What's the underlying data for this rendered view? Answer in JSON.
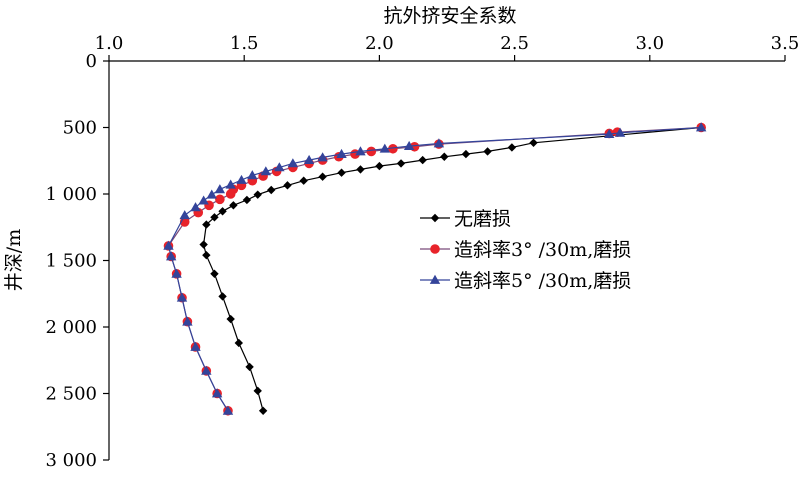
{
  "chart_data": {
    "type": "line",
    "xlabel": "抗外挤安全系数",
    "ylabel": "井深/m",
    "xlim": [
      1.0,
      3.5
    ],
    "ylim": [
      0,
      3000
    ],
    "x_axis_position": "top",
    "y_axis_inverted": true,
    "x_ticks": [
      1.0,
      1.5,
      2.0,
      2.5,
      3.0,
      3.5
    ],
    "x_tick_labels": [
      "1.0",
      "1.5",
      "2.0",
      "2.5",
      "3.0",
      "3.5"
    ],
    "y_ticks": [
      0,
      500,
      1000,
      1500,
      2000,
      2500,
      3000
    ],
    "y_tick_labels": [
      "0",
      "500",
      "1 000",
      "1 500",
      "2 000",
      "2 500",
      "3 000"
    ],
    "grid": false,
    "legend_position": "right",
    "series": [
      {
        "name": "无磨损",
        "color": "#000000",
        "marker": "diamond",
        "points": [
          [
            3.19,
            500
          ],
          [
            2.57,
            615
          ],
          [
            2.49,
            650
          ],
          [
            2.4,
            680
          ],
          [
            2.32,
            700
          ],
          [
            2.24,
            720
          ],
          [
            2.16,
            745
          ],
          [
            2.08,
            770
          ],
          [
            2.0,
            790
          ],
          [
            1.93,
            815
          ],
          [
            1.86,
            840
          ],
          [
            1.79,
            870
          ],
          [
            1.72,
            900
          ],
          [
            1.66,
            935
          ],
          [
            1.6,
            970
          ],
          [
            1.55,
            1005
          ],
          [
            1.51,
            1045
          ],
          [
            1.46,
            1085
          ],
          [
            1.42,
            1130
          ],
          [
            1.39,
            1175
          ],
          [
            1.36,
            1230
          ],
          [
            1.35,
            1380
          ],
          [
            1.36,
            1460
          ],
          [
            1.39,
            1600
          ],
          [
            1.42,
            1770
          ],
          [
            1.45,
            1940
          ],
          [
            1.48,
            2120
          ],
          [
            1.52,
            2300
          ],
          [
            1.55,
            2480
          ],
          [
            1.57,
            2630
          ]
        ]
      },
      {
        "name": "造斜率3° /30m,磨损",
        "color": "#e8232a",
        "line_color": "#7a4a7a",
        "marker": "circle",
        "points": [
          [
            3.19,
            500
          ],
          [
            2.88,
            535
          ],
          [
            2.85,
            545
          ],
          [
            2.22,
            625
          ],
          [
            2.13,
            645
          ],
          [
            2.05,
            660
          ],
          [
            1.97,
            680
          ],
          [
            1.91,
            700
          ],
          [
            1.85,
            720
          ],
          [
            1.79,
            745
          ],
          [
            1.74,
            770
          ],
          [
            1.68,
            800
          ],
          [
            1.62,
            830
          ],
          [
            1.57,
            865
          ],
          [
            1.53,
            900
          ],
          [
            1.49,
            935
          ],
          [
            1.46,
            965
          ],
          [
            1.45,
            1000
          ],
          [
            1.41,
            1040
          ],
          [
            1.37,
            1085
          ],
          [
            1.33,
            1140
          ],
          [
            1.28,
            1210
          ],
          [
            1.22,
            1390
          ],
          [
            1.23,
            1470
          ],
          [
            1.25,
            1600
          ],
          [
            1.27,
            1780
          ],
          [
            1.29,
            1960
          ],
          [
            1.32,
            2150
          ],
          [
            1.36,
            2330
          ],
          [
            1.4,
            2500
          ],
          [
            1.44,
            2630
          ]
        ]
      },
      {
        "name": "造斜率5° /30m,磨损",
        "color": "#34449a",
        "marker": "triangle",
        "points": [
          [
            3.19,
            500
          ],
          [
            2.89,
            540
          ],
          [
            2.85,
            550
          ],
          [
            2.22,
            620
          ],
          [
            2.11,
            640
          ],
          [
            2.02,
            660
          ],
          [
            1.93,
            680
          ],
          [
            1.86,
            700
          ],
          [
            1.79,
            725
          ],
          [
            1.74,
            745
          ],
          [
            1.68,
            770
          ],
          [
            1.63,
            800
          ],
          [
            1.58,
            830
          ],
          [
            1.53,
            860
          ],
          [
            1.49,
            895
          ],
          [
            1.45,
            930
          ],
          [
            1.41,
            965
          ],
          [
            1.38,
            1005
          ],
          [
            1.35,
            1050
          ],
          [
            1.32,
            1100
          ],
          [
            1.28,
            1160
          ],
          [
            1.22,
            1390
          ],
          [
            1.23,
            1470
          ],
          [
            1.25,
            1600
          ],
          [
            1.27,
            1780
          ],
          [
            1.29,
            1960
          ],
          [
            1.32,
            2150
          ],
          [
            1.36,
            2330
          ],
          [
            1.4,
            2500
          ],
          [
            1.44,
            2630
          ]
        ]
      }
    ]
  }
}
